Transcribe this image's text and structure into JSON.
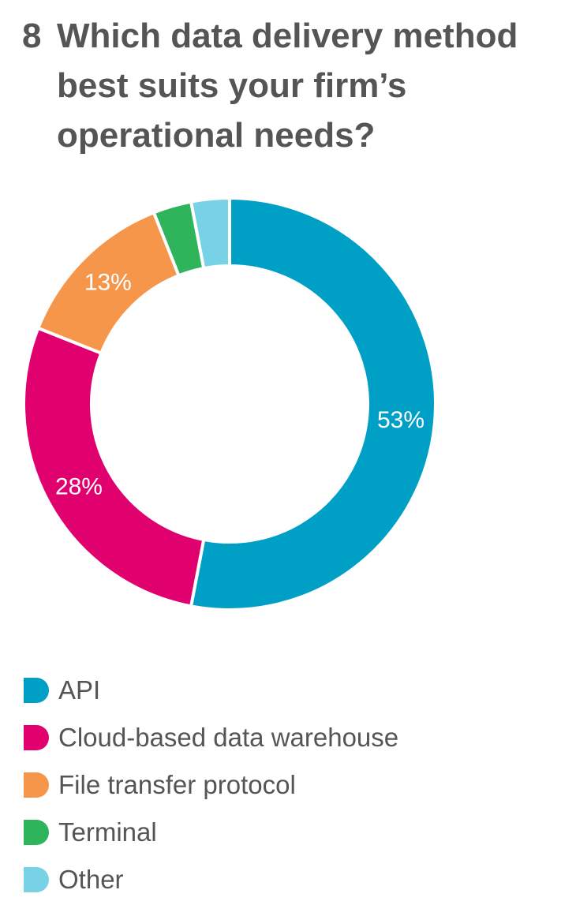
{
  "question": {
    "number": "8",
    "text": "Which data delivery method best suits your firm’s operational needs?"
  },
  "chart_data": {
    "type": "pie",
    "variant": "donut",
    "categories": [
      "API",
      "Cloud-based data warehouse",
      "File transfer protocol",
      "Terminal",
      "Other"
    ],
    "values": [
      53,
      28,
      13,
      3,
      3
    ],
    "value_labels": [
      "53%",
      "28%",
      "13%",
      "",
      ""
    ],
    "colors": [
      "#00a0c6",
      "#e0006e",
      "#f5964b",
      "#2eb45a",
      "#78d2e6"
    ],
    "unit": "%",
    "start": "12 o'clock",
    "direction": "clockwise",
    "legend_position": "bottom-left"
  }
}
